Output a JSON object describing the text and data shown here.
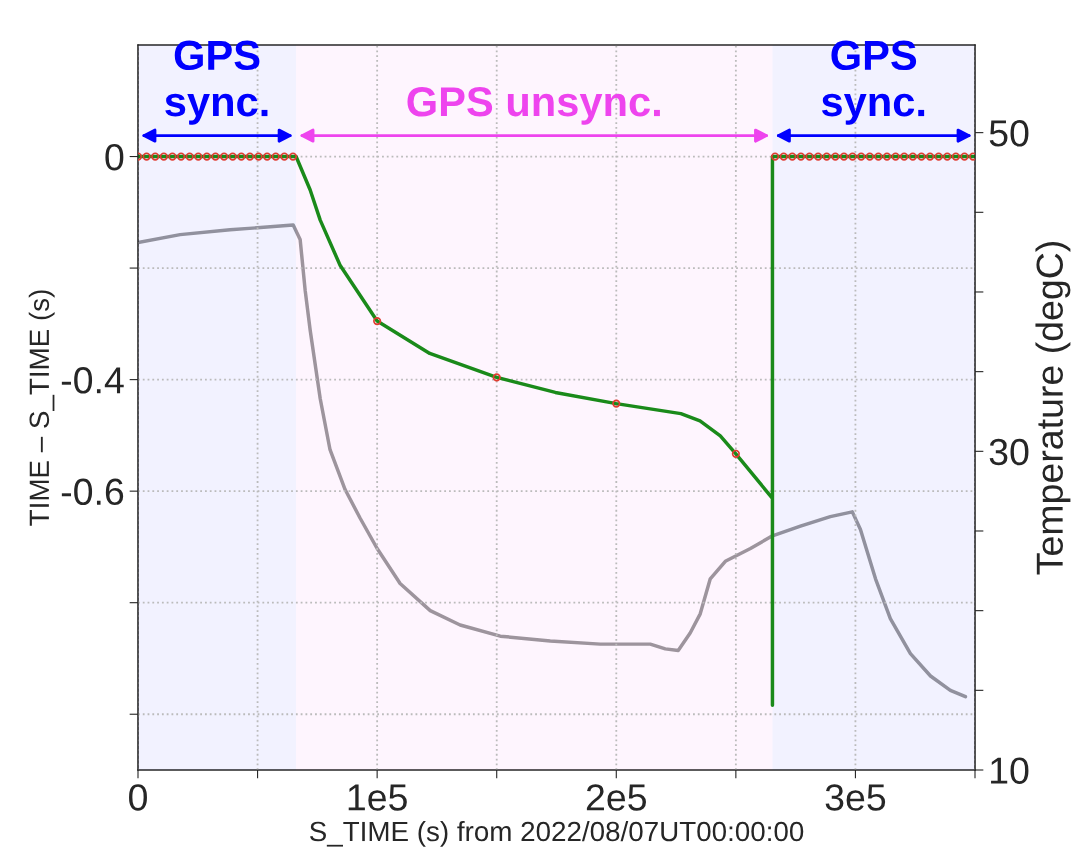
{
  "chart_data": {
    "type": "line",
    "xlabel": "S_TIME (s) from 2022/08/07UT00:00:00",
    "ylabel": "TIME – S_TIME (s)",
    "y2label": "Temperature (degC)",
    "xlim": [
      0,
      350000
    ],
    "xticks": [
      0,
      {
        "value": 50000,
        "label": null
      },
      {
        "value": 100000,
        "label": "1e5"
      },
      {
        "value": 150000,
        "label": null
      },
      {
        "value": 200000,
        "label": "2e5"
      },
      {
        "value": 250000,
        "label": null
      },
      {
        "value": 300000,
        "label": "3e5"
      },
      {
        "value": 350000,
        "label": null
      }
    ],
    "ylim": [
      -1.1,
      0.2
    ],
    "yticks": [
      0,
      {
        "value": -0.2,
        "label": null
      },
      -0.4,
      {
        "value": -0.6,
        "label": "-0.6"
      },
      {
        "value": -0.8,
        "label": null
      },
      {
        "value": -1.0,
        "label": null
      }
    ],
    "y2lim": [
      10,
      55.5
    ],
    "y2ticks": [
      50,
      {
        "value": 45,
        "label": null
      },
      {
        "value": 40,
        "label": null
      },
      {
        "value": 35,
        "label": null
      },
      30,
      {
        "value": 25,
        "label": null
      },
      {
        "value": 20,
        "label": null
      },
      {
        "value": 15,
        "label": null
      },
      10
    ],
    "grid": true,
    "legend": false,
    "series": [
      {
        "color": "#1a8a1a",
        "x": [
          0,
          66100,
          72000,
          76200,
          84500,
          100000,
          122000,
          150000,
          174500,
          200000,
          227000,
          235000,
          243500,
          250000,
          265300,
          265300,
          265300,
          350000
        ],
        "values": [
          0,
          0,
          -0.06,
          -0.114,
          -0.195,
          -0.295,
          -0.353,
          -0.396,
          -0.423,
          -0.443,
          -0.461,
          -0.474,
          -0.501,
          -0.533,
          -0.613,
          -0.984,
          0,
          0
        ]
      },
      {
        "type": "scatter",
        "marker": "circle",
        "color": "#e03c31",
        "x": [
          0,
          3600,
          7200,
          10800,
          14400,
          18000,
          21600,
          25200,
          28800,
          32400,
          36000,
          39600,
          43200,
          46800,
          50400,
          54000,
          57600,
          61200,
          64800,
          100000,
          150000,
          200000,
          250000,
          266400,
          270000,
          273600,
          277200,
          280800,
          284400,
          288000,
          291600,
          295200,
          298800,
          302400,
          306000,
          309600,
          313200,
          316800,
          320400,
          324000,
          327600,
          331200,
          334800,
          338400,
          342000,
          345600,
          349200
        ],
        "values": [
          0,
          0,
          0,
          0,
          0,
          0,
          0,
          0,
          0,
          0,
          0,
          0,
          0,
          0,
          0,
          0,
          0,
          0,
          0,
          -0.295,
          -0.396,
          -0.443,
          -0.533,
          0,
          0,
          0,
          0,
          0,
          0,
          0,
          0,
          0,
          0,
          0,
          0,
          0,
          0,
          0,
          0,
          0,
          0,
          0,
          0,
          0,
          0,
          0,
          0
        ]
      },
      {
        "axis": "y2",
        "color": "#999999",
        "x": [
          0,
          17600,
          38500,
          64900,
          67800,
          69900,
          72000,
          76200,
          80300,
          86600,
          92900,
          100000,
          109600,
          122200,
          134700,
          151500,
          172400,
          193300,
          214200,
          220500,
          225900,
          230900,
          235100,
          239300,
          245600,
          256100,
          265300,
          277000,
          289500,
          298700,
          302100,
          308400,
          314600,
          323000,
          331400,
          339700,
          346000
        ],
        "values": [
          43.1,
          43.6,
          43.9,
          44.2,
          43.3,
          40.1,
          37.6,
          33.3,
          30.1,
          27.6,
          25.8,
          23.9,
          21.7,
          20.0,
          19.1,
          18.4,
          18.1,
          17.9,
          17.9,
          17.6,
          17.5,
          18.6,
          19.8,
          22.0,
          23.1,
          23.9,
          24.7,
          25.3,
          25.9,
          26.2,
          25.1,
          22.0,
          19.5,
          17.3,
          15.9,
          15.0,
          14.6
        ]
      }
    ],
    "bands": [
      {
        "axis": "x",
        "from": 0,
        "to": 66100,
        "label": "GPS\nsync.",
        "color": "#0000ff"
      },
      {
        "axis": "x",
        "from": 66100,
        "to": 265300,
        "label": "GPS unsync.",
        "color": "#ee44ee"
      },
      {
        "axis": "x",
        "from": 265300,
        "to": 350000,
        "label": "GPS\nsync.",
        "color": "#0000ff"
      }
    ]
  }
}
